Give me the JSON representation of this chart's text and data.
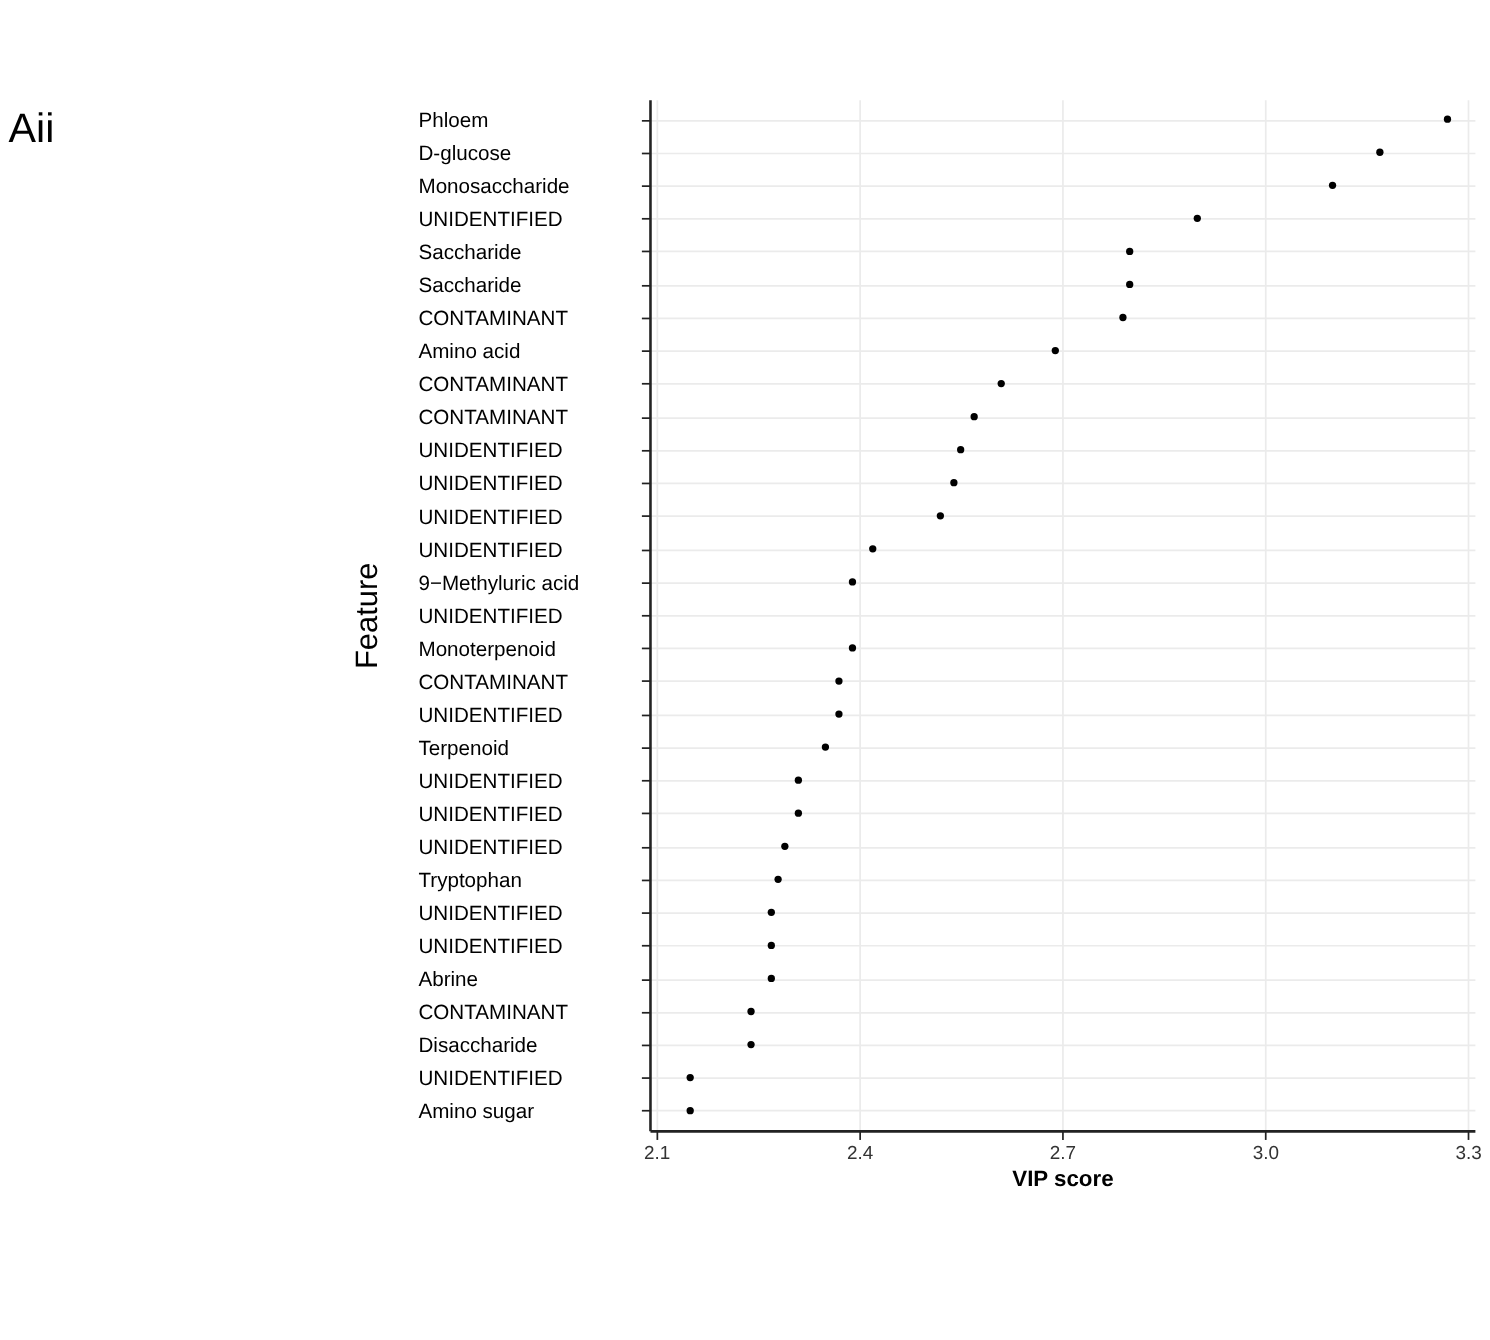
{
  "chart_data": {
    "type": "scatter",
    "title": "Aii",
    "xlabel": "VIP score",
    "ylabel": "Feature",
    "categories": [
      "Phloem",
      "D-glucose",
      "Monosaccharide",
      "UNIDENTIFIED",
      "Saccharide",
      "Saccharide",
      "CONTAMINANT",
      "Amino acid",
      "CONTAMINANT",
      "CONTAMINANT",
      "UNIDENTIFIED",
      "UNIDENTIFIED",
      "UNIDENTIFIED",
      "UNIDENTIFIED",
      "9−Methyluric acid",
      "UNIDENTIFIED",
      "Monoterpenoid",
      "CONTAMINANT",
      "UNIDENTIFIED",
      "Terpenoid",
      "UNIDENTIFIED",
      "UNIDENTIFIED",
      "UNIDENTIFIED",
      "Tryptophan",
      "UNIDENTIFIED",
      "UNIDENTIFIED",
      "Abrine",
      "CONTAMINANT",
      "Disaccharide",
      "UNIDENTIFIED",
      "Amino sugar"
    ],
    "series": [
      {
        "color": "#000000",
        "values": [
          3.27,
          3.17,
          3.1,
          2.9,
          2.8,
          2.8,
          2.79,
          2.69,
          2.61,
          2.57,
          2.55,
          2.54,
          2.52,
          2.42,
          2.39,
          null,
          2.39,
          2.37,
          2.37,
          2.35,
          2.31,
          2.31,
          2.29,
          2.28,
          2.27,
          2.27,
          2.27,
          2.24,
          2.24,
          2.15,
          2.15
        ]
      }
    ],
    "orientation": "horizontal",
    "xlim": [
      2.09,
      3.31
    ],
    "xticks": [
      2.1,
      2.4,
      2.7,
      {
        "value": 3.0,
        "label": "3.0"
      },
      3.3
    ],
    "grid": true,
    "marker": "circle"
  }
}
